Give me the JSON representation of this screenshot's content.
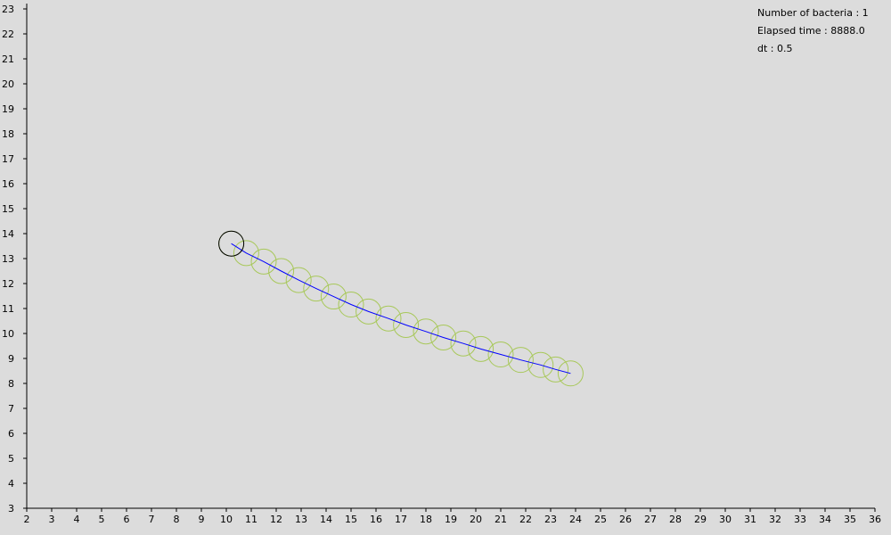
{
  "info": {
    "bacteria_count": "Number of bacteria : 1",
    "elapsed_time": "Elapsed time : 8888.0",
    "dt": "dt : 0.5"
  },
  "chart_data": {
    "type": "scatter",
    "xlim": [
      2,
      36
    ],
    "ylim": [
      3,
      23
    ],
    "x_ticks": [
      2,
      3,
      4,
      5,
      6,
      7,
      8,
      9,
      10,
      11,
      12,
      13,
      14,
      15,
      16,
      17,
      18,
      19,
      20,
      21,
      22,
      23,
      24,
      25,
      26,
      27,
      28,
      29,
      30,
      31,
      32,
      33,
      34,
      35,
      36
    ],
    "y_ticks": [
      3,
      4,
      5,
      6,
      7,
      8,
      9,
      10,
      11,
      12,
      13,
      14,
      15,
      16,
      17,
      18,
      19,
      20,
      21,
      22,
      23
    ],
    "grid": false,
    "bacterium": {
      "radius": 0.5,
      "head": [
        10.2,
        13.6
      ],
      "tail": [
        23.8,
        8.4
      ],
      "trajectory": {
        "x": [
          10.2,
          10.8,
          11.5,
          12.2,
          12.9,
          13.6,
          14.3,
          15.0,
          15.7,
          16.5,
          17.2,
          18.0,
          18.7,
          19.5,
          20.2,
          21.0,
          21.8,
          22.6,
          23.2,
          23.8
        ],
        "y": [
          13.6,
          13.22,
          12.88,
          12.5,
          12.14,
          11.8,
          11.48,
          11.16,
          10.88,
          10.6,
          10.34,
          10.08,
          9.84,
          9.6,
          9.38,
          9.16,
          8.94,
          8.74,
          8.56,
          8.4
        ]
      },
      "colors": {
        "body": "#a8c85a",
        "trajectory": "#0000ff",
        "head": "#000000"
      }
    }
  }
}
